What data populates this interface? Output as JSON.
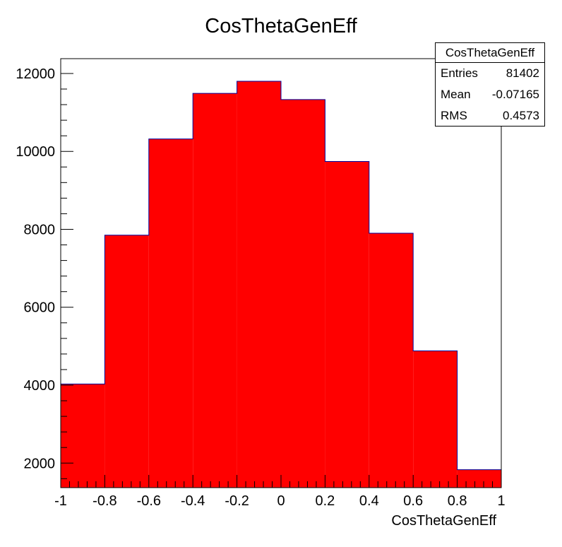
{
  "chart_data": {
    "type": "bar",
    "title": "CosThetaGenEff",
    "xlabel": "CosThetaGenEff",
    "ylabel": "",
    "bin_edges": [
      -1,
      -0.8,
      -0.6,
      -0.4,
      -0.2,
      0,
      0.2,
      0.4,
      0.6,
      0.8,
      1
    ],
    "values": [
      4030,
      7850,
      10320,
      11490,
      11800,
      11330,
      9740,
      7900,
      4880,
      1830
    ],
    "xlim": [
      -1,
      1
    ],
    "ylim": [
      1370,
      12380
    ],
    "x_ticks": [
      "-1",
      "-0.8",
      "-0.6",
      "-0.4",
      "-0.2",
      "0",
      "0.2",
      "0.4",
      "0.6",
      "0.8",
      "1"
    ],
    "y_ticks": [
      "2000",
      "4000",
      "6000",
      "8000",
      "10000",
      "12000"
    ],
    "fill_color": "#ff0000",
    "line_color": "#000099",
    "grid": false,
    "legend_position": "top-right"
  },
  "stats": {
    "title": "CosThetaGenEff",
    "entries_label": "Entries",
    "entries_value": "81402",
    "mean_label": "Mean",
    "mean_value": "-0.07165",
    "rms_label": "RMS",
    "rms_value": "0.4573"
  }
}
